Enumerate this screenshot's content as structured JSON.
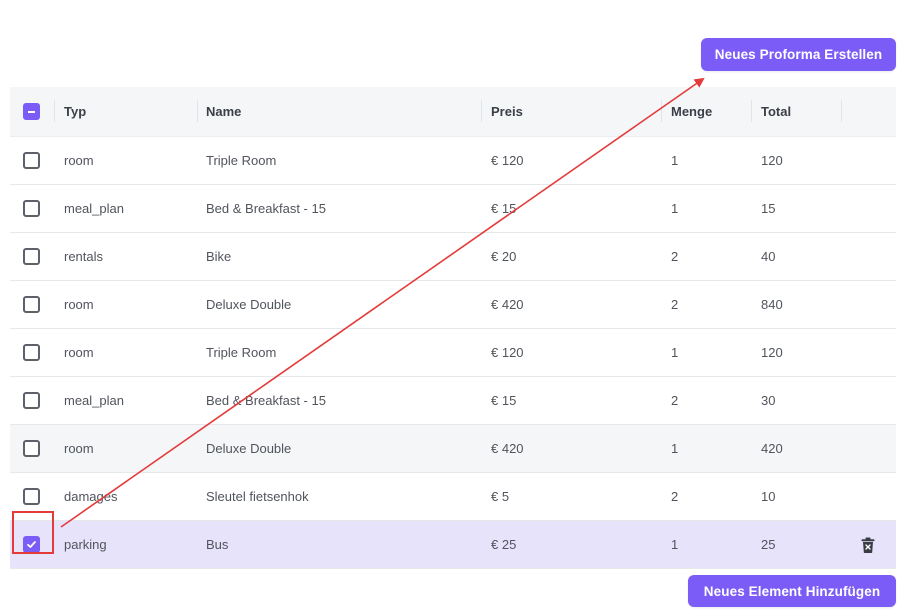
{
  "actions": {
    "new_proforma": "Neues Proforma Erstellen",
    "new_element": "Neues Element Hinzufügen"
  },
  "table": {
    "columns": [
      "Typ",
      "Name",
      "Preis",
      "Menge",
      "Total"
    ],
    "rows": [
      {
        "typ": "room",
        "name": "Triple Room",
        "preis": "€ 120",
        "menge": "1",
        "total": "120",
        "checked": false
      },
      {
        "typ": "meal_plan",
        "name": "Bed & Breakfast - 15",
        "preis": "€ 15",
        "menge": "1",
        "total": "15",
        "checked": false
      },
      {
        "typ": "rentals",
        "name": "Bike",
        "preis": "€ 20",
        "menge": "2",
        "total": "40",
        "checked": false
      },
      {
        "typ": "room",
        "name": "Deluxe Double",
        "preis": "€ 420",
        "menge": "2",
        "total": "840",
        "checked": false
      },
      {
        "typ": "room",
        "name": "Triple Room",
        "preis": "€ 120",
        "menge": "1",
        "total": "120",
        "checked": false
      },
      {
        "typ": "meal_plan",
        "name": "Bed & Breakfast - 15",
        "preis": "€ 15",
        "menge": "2",
        "total": "30",
        "checked": false
      },
      {
        "typ": "room",
        "name": "Deluxe Double",
        "preis": "€ 420",
        "menge": "1",
        "total": "420",
        "checked": false
      },
      {
        "typ": "damages",
        "name": "Sleutel fietsenhok",
        "preis": "€ 5",
        "menge": "2",
        "total": "10",
        "checked": false
      },
      {
        "typ": "parking",
        "name": "Bus",
        "preis": "€ 25",
        "menge": "1",
        "total": "25",
        "checked": true
      }
    ]
  },
  "icons": {
    "header_checkbox": "indeterminate-checkbox-icon",
    "row_delete": "trash-icon"
  },
  "colors": {
    "accent": "#7c5cf6",
    "selected_row": "#e7e3fb",
    "annotation": "#e33a3a"
  }
}
